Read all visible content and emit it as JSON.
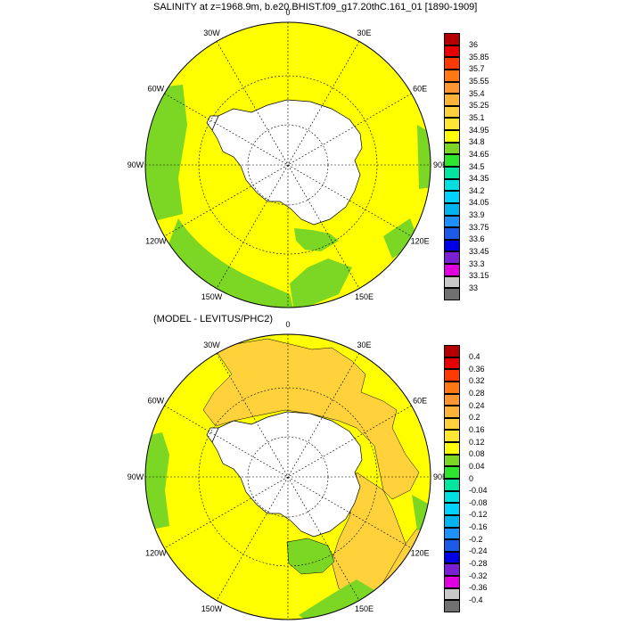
{
  "panels": [
    {
      "title": "SALINITY at z=1968.9m, b.e20.BHIST.f09_g17.20thC.161_01 [1890-1909]",
      "cbar_colors": [
        "#707070",
        "#c8c8c8",
        "#e000e0",
        "#7a1fd1",
        "#0000e6",
        "#1a5ae6",
        "#1e90ff",
        "#00b4f0",
        "#00d2ff",
        "#00e0e0",
        "#00e6a0",
        "#2ee62e",
        "#7cd624",
        "#ffff00",
        "#ffe632",
        "#ffd23c",
        "#ffb437",
        "#ff9632",
        "#ff7814",
        "#ff3a00",
        "#e60000",
        "#b40000"
      ],
      "cbar_labels": [
        "33",
        "33.15",
        "33.3",
        "33.45",
        "33.6",
        "33.75",
        "33.9",
        "34.05",
        "34.2",
        "34.35",
        "34.5",
        "34.65",
        "34.8",
        "34.95",
        "35.1",
        "35.25",
        "35.4",
        "35.55",
        "35.7",
        "35.85",
        "36"
      ]
    },
    {
      "title": "(MODEL - LEVITUS/PHC2)",
      "cbar_colors": [
        "#707070",
        "#c8c8c8",
        "#e000e0",
        "#7a1fd1",
        "#0000e6",
        "#1a5ae6",
        "#1e90ff",
        "#00b4f0",
        "#00d2ff",
        "#00e0e0",
        "#00e6a0",
        "#2ee62e",
        "#7cd624",
        "#ffff00",
        "#ffe632",
        "#ffd23c",
        "#ffb437",
        "#ff9632",
        "#ff7814",
        "#ff3a00",
        "#e60000",
        "#b40000"
      ],
      "cbar_labels": [
        "-0.4",
        "-0.36",
        "-0.32",
        "-0.28",
        "-0.24",
        "-0.2",
        "-0.16",
        "-0.12",
        "-0.08",
        "-0.04",
        "0",
        "0.04",
        "0.08",
        "0.12",
        "0.16",
        "0.2",
        "0.24",
        "0.28",
        "0.32",
        "0.36",
        "0.4"
      ]
    }
  ],
  "lon_labels": [
    "0",
    "30E",
    "60E",
    "90E",
    "120E",
    "150E",
    "180",
    "150W",
    "120W",
    "90W",
    "60W",
    "30W"
  ],
  "map_colors": {
    "panel1_ocean": "#ffff00",
    "panel1_green": "#7cd624",
    "panel2_ocean": "#ffff00",
    "panel2_orange": "#ffd23c",
    "panel2_green": "#7cd624",
    "land": "#ffffff"
  }
}
